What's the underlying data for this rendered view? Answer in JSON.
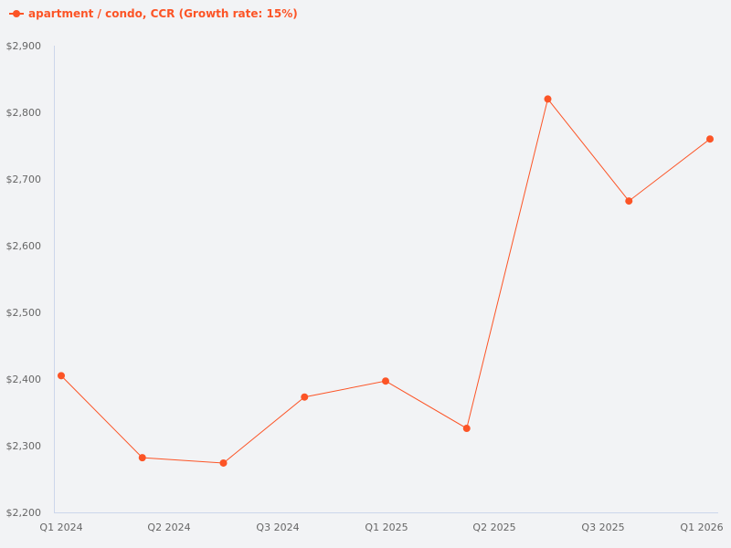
{
  "legend": {
    "label": "apartment / condo, CCR (Growth rate: 15%)",
    "color": "#fc5426"
  },
  "chart_data": {
    "type": "line",
    "title": "",
    "xlabel": "",
    "ylabel": "",
    "ylim": [
      2200,
      2900
    ],
    "y_ticks": [
      "$2,200",
      "$2,300",
      "$2,400",
      "$2,500",
      "$2,600",
      "$2,700",
      "$2,800",
      "$2,900"
    ],
    "x_tick_labels": [
      "Q1 2024",
      "Q2 2024",
      "Q3 2024",
      "Q1 2025",
      "Q2 2025",
      "Q3 2025",
      "Q1 2026"
    ],
    "grid": false,
    "legend_position": "top-left",
    "series": [
      {
        "name": "apartment / condo, CCR (Growth rate: 15%)",
        "color": "#fc5426",
        "values": [
          2405,
          2282,
          2274,
          2373,
          2397,
          2326,
          2820,
          2667,
          2760
        ]
      }
    ]
  }
}
